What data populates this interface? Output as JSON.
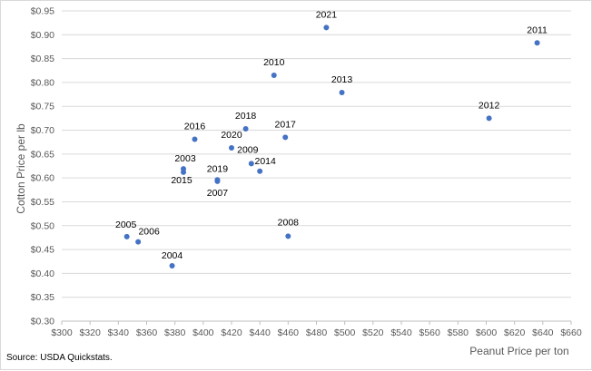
{
  "chart_data": {
    "type": "scatter",
    "xlabel": "Peanut Price per ton",
    "ylabel": "Cotton Price per lb",
    "xlim": [
      300,
      660
    ],
    "ylim": [
      0.3,
      0.95
    ],
    "x_ticks": [
      300,
      320,
      340,
      360,
      380,
      400,
      420,
      440,
      460,
      480,
      500,
      520,
      540,
      560,
      580,
      600,
      620,
      640,
      660
    ],
    "y_ticks": [
      0.3,
      0.35,
      0.4,
      0.45,
      0.5,
      0.55,
      0.6,
      0.65,
      0.7,
      0.75,
      0.8,
      0.85,
      0.9,
      0.95
    ],
    "x_tick_prefix": "$",
    "y_tick_prefix": "$",
    "grid": "horizontal",
    "marker_color": "#4472c4",
    "points": [
      {
        "label": "2003",
        "x": 386,
        "y": 0.619
      },
      {
        "label": "2004",
        "x": 378,
        "y": 0.416
      },
      {
        "label": "2005",
        "x": 346,
        "y": 0.477
      },
      {
        "label": "2006",
        "x": 354,
        "y": 0.466
      },
      {
        "label": "2007",
        "x": 410,
        "y": 0.593
      },
      {
        "label": "2008",
        "x": 460,
        "y": 0.478
      },
      {
        "label": "2009",
        "x": 434,
        "y": 0.63
      },
      {
        "label": "2010",
        "x": 450,
        "y": 0.815
      },
      {
        "label": "2011",
        "x": 636,
        "y": 0.883
      },
      {
        "label": "2012",
        "x": 602,
        "y": 0.725
      },
      {
        "label": "2013",
        "x": 498,
        "y": 0.779
      },
      {
        "label": "2014",
        "x": 440,
        "y": 0.614
      },
      {
        "label": "2015",
        "x": 386,
        "y": 0.612
      },
      {
        "label": "2016",
        "x": 394,
        "y": 0.681
      },
      {
        "label": "2017",
        "x": 458,
        "y": 0.685
      },
      {
        "label": "2018",
        "x": 430,
        "y": 0.703
      },
      {
        "label": "2019",
        "x": 410,
        "y": 0.596
      },
      {
        "label": "2020",
        "x": 420,
        "y": 0.663
      },
      {
        "label": "2021",
        "x": 487,
        "y": 0.915
      }
    ]
  },
  "source_text": "Source: USDA Quickstats."
}
